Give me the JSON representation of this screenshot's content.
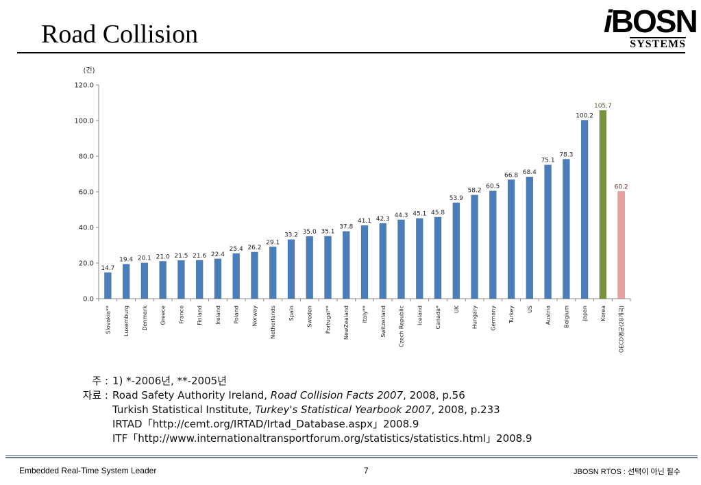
{
  "slide": {
    "title": "Road Collision",
    "logo_main": "BOSN",
    "logo_i": "i",
    "logo_sub": "SYSTEMS"
  },
  "chart_data": {
    "type": "bar",
    "ylabel": "(건)",
    "ylim": [
      0,
      120
    ],
    "yticks": [
      "0.0",
      "20.0",
      "40.0",
      "60.0",
      "80.0",
      "100.0",
      "120.0"
    ],
    "grid": false,
    "categories": [
      "Slovakia**",
      "Luxemburg",
      "Denmark",
      "Greece",
      "France",
      "Finland",
      "Ireland",
      "Poland",
      "Norway",
      "Netherlands",
      "Spain",
      "Sweden",
      "Portugal**",
      "NewZealand",
      "Italy**",
      "Switzerland",
      "Czech Republic",
      "Iceland",
      "Canada*",
      "UK",
      "Hungary",
      "Germany",
      "Turkey",
      "US",
      "Austria",
      "Belgium",
      "Japan",
      "Korea",
      "OECD평균(28개국)"
    ],
    "values": [
      14.7,
      19.4,
      20.1,
      21.0,
      21.5,
      21.6,
      22.4,
      25.4,
      26.2,
      29.1,
      33.2,
      35.0,
      35.1,
      37.8,
      41.1,
      42.3,
      44.3,
      45.1,
      45.8,
      53.9,
      58.2,
      60.5,
      66.8,
      68.4,
      75.1,
      78.3,
      100.2,
      105.7,
      60.2
    ],
    "value_labels": [
      "14.7",
      "19.4",
      "20.1",
      "21.0",
      "21.5",
      "21.6",
      "22.4",
      "25.4",
      "26.2",
      "29.1",
      "33.2",
      "35.0",
      "35.1",
      "37.8",
      "41.1",
      "42.3",
      "44.3",
      "45.1",
      "45.8",
      "53.9",
      "58.2",
      "60.5",
      "66.8",
      "68.4",
      "75.1",
      "78.3",
      "100.2",
      "105.7",
      "60.2"
    ],
    "colors": {
      "default": "#4a7ebb",
      "highlight": "#77933c",
      "average": "#e6a0a0",
      "highlight_label": "#4f6228",
      "average_label": "#632523"
    }
  },
  "notes": {
    "note_label": "주 :",
    "note_text": "1) *-2006년, **-2005년",
    "source_label": "자료 :",
    "sources": [
      {
        "pre": "Road Safety Authority Ireland, ",
        "italic": "Road Collision Facts 2007",
        "post": ", 2008, p.56"
      },
      {
        "pre": "Turkish Statistical Institute, ",
        "italic": "Turkey's Statistical Yearbook 2007",
        "post": ", 2008, p.233"
      },
      {
        "pre": "IRTAD「http://cemt.org/IRTAD/Irtad_Database.aspx」2008.9",
        "italic": "",
        "post": ""
      },
      {
        "pre": "ITF「http://www.internationaltransportforum.org/statistics/statistics.html」2008.9",
        "italic": "",
        "post": ""
      }
    ]
  },
  "footer": {
    "left": "Embedded Real-Time System Leader",
    "page": "7",
    "right": "JBOSN RTOS : 선택이 아닌 필수"
  }
}
